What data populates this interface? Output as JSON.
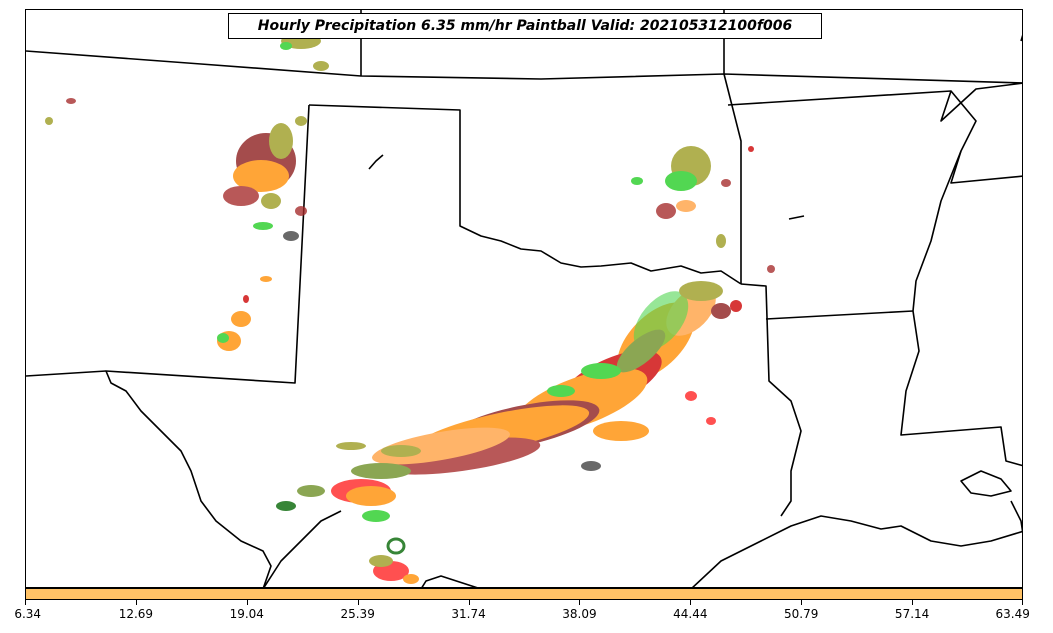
{
  "title": "Hourly Precipitation 6.35 mm/hr Paintball Valid: 202105312100f006",
  "colorbar": {
    "color": "#ffc266",
    "ticks": [
      "6.34",
      "12.69",
      "19.04",
      "25.39",
      "31.74",
      "38.09",
      "44.44",
      "50.79",
      "57.14",
      "63.49"
    ]
  },
  "member_colors": [
    "#ff8c00",
    "#ffa040",
    "#cc0000",
    "#ff2020",
    "#8b1a1a",
    "#a52a2a",
    "#9a9a20",
    "#6b8e23",
    "#22cc22",
    "#006400",
    "#404040"
  ]
}
